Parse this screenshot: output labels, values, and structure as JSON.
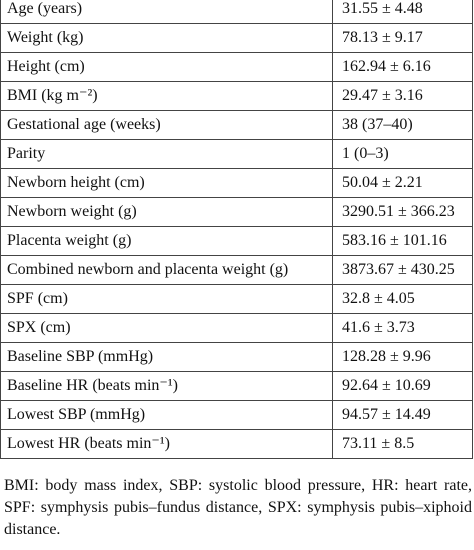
{
  "table": {
    "rows": [
      [
        "Age (years)",
        "31.55 ± 4.48"
      ],
      [
        "Weight (kg)",
        "78.13 ± 9.17"
      ],
      [
        "Height (cm)",
        "162.94 ± 6.16"
      ],
      [
        "BMI (kg m⁻²)",
        "29.47 ± 3.16"
      ],
      [
        "Gestational age (weeks)",
        "38 (37–40)"
      ],
      [
        "Parity",
        "1 (0–3)"
      ],
      [
        "Newborn height (cm)",
        "50.04 ± 2.21"
      ],
      [
        "Newborn weight (g)",
        "3290.51 ± 366.23"
      ],
      [
        "Placenta weight (g)",
        "583.16 ± 101.16"
      ],
      [
        "Combined newborn and placenta weight (g)",
        "3873.67 ± 430.25"
      ],
      [
        "SPF (cm)",
        "32.8 ± 4.05"
      ],
      [
        "SPX (cm)",
        "41.6 ± 3.73"
      ],
      [
        "Baseline SBP (mmHg)",
        "128.28 ± 9.96"
      ],
      [
        "Baseline HR (beats min⁻¹)",
        "92.64 ± 10.69"
      ],
      [
        "Lowest SBP (mmHg)",
        "94.57 ± 14.49"
      ],
      [
        "Lowest HR (beats min⁻¹)",
        "73.11 ± 8.5"
      ]
    ]
  },
  "footnote": "BMI: body mass index, SBP: systolic blood pressure, HR: heart rate, SPF: symphysis pubis–fundus distance, SPX: symphysis pubis–xiphoid distance."
}
